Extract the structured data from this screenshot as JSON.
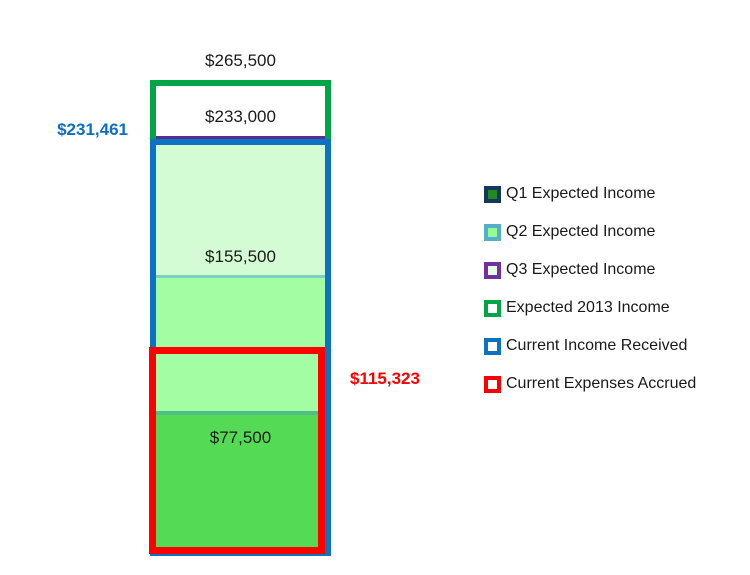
{
  "chart_data": {
    "type": "bar",
    "subtype": "overlapped thermometer bar (single category, border-only overlay series)",
    "title": "",
    "xlabel": "",
    "ylabel": "",
    "categories": [
      ""
    ],
    "series": [
      {
        "name": "Q1 Expected Income",
        "value": 77500,
        "label": "$77,500"
      },
      {
        "name": "Q2 Expected Income",
        "value": 155500,
        "label": "$155,500"
      },
      {
        "name": "Q3 Expected Income",
        "value": 233000,
        "label": "$233,000"
      },
      {
        "name": "Expected 2013 Income",
        "value": 265500,
        "label": "$265,500"
      },
      {
        "name": "Current Income Received",
        "value": 231461,
        "label": "$231,461"
      },
      {
        "name": "Current Expenses Accrued",
        "value": 115323,
        "label": "$115,323"
      }
    ],
    "ylim": [
      0,
      265500
    ],
    "axes_visible": false,
    "grid": false,
    "legend_position": "right"
  },
  "bar_labels": {
    "expected_total": "$265,500",
    "q3_top": "$233,000",
    "q2_top": "$155,500",
    "q1_top": "$77,500",
    "income_received": "$231,461",
    "expenses_accrued": "$115,323"
  },
  "legend": {
    "items": [
      {
        "label": "Q1 Expected Income",
        "border": "#16365C",
        "fill": "#1F8A1F"
      },
      {
        "label": "Q2 Expected Income",
        "border": "#57AECB",
        "fill": "#92FB92"
      },
      {
        "label": "Q3 Expected Income",
        "border": "#7030A0",
        "fill": "#E4FCE4"
      },
      {
        "label": "Expected 2013 Income",
        "border": "#00A547",
        "fill": "#FFFFFF"
      },
      {
        "label": "Current Income Received",
        "border": "#0B72C4",
        "fill": "#FFFFFF"
      },
      {
        "label": "Current Expenses Accrued",
        "border": "#FE0000",
        "fill": "#FFFFFF"
      }
    ]
  },
  "colors": {
    "expected_border": "#00A547",
    "income_border": "#0B72C4",
    "expenses_border": "#FE0000",
    "q1_fill": "#55DA55",
    "q2_fill": "#A3FEA3",
    "q3_fill": "#D4FCD4",
    "q3_top_border": "#5C2D91",
    "q2_top_border": "#7ECFC0",
    "q1_top_border": "#50BE87",
    "income_label_text": "#0E6FC0",
    "expenses_label_text": "#FE0000",
    "black_label_text": "#1B1B1B"
  }
}
